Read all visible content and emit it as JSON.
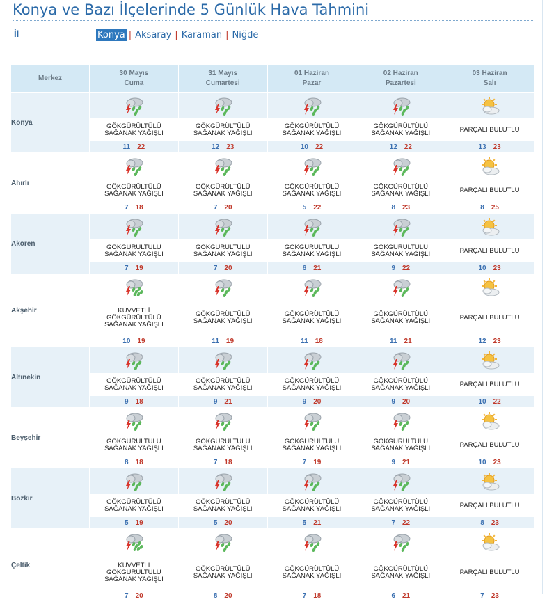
{
  "title": "Konya ve Bazı İlçelerinde 5 Günlük Hava Tahmini",
  "il_label": "İl",
  "provinces": [
    "Konya",
    "Aksaray",
    "Karaman",
    "Niğde"
  ],
  "active_province": "Konya",
  "header": {
    "merkez": "Merkez",
    "days": [
      {
        "date": "30 Mayıs",
        "weekday": "Cuma"
      },
      {
        "date": "31 Mayıs",
        "weekday": "Cumartesi"
      },
      {
        "date": "01 Haziran",
        "weekday": "Pazar"
      },
      {
        "date": "02 Haziran",
        "weekday": "Pazartesi"
      },
      {
        "date": "03 Haziran",
        "weekday": "Salı"
      }
    ]
  },
  "conditions": {
    "storm": {
      "icon": "thunderstorm-icon",
      "lines": [
        "GÖKGÜRÜLTÜLÜ",
        "SAĞANAK YAĞIŞLI"
      ]
    },
    "strong": {
      "icon": "heavy-thunderstorm-icon",
      "lines": [
        "KUVVETLİ",
        "GÖKGÜRÜLTÜLÜ",
        "SAĞANAK YAĞIŞLI"
      ]
    },
    "partly": {
      "icon": "partly-cloudy-icon",
      "lines": [
        "PARÇALI BULUTLU"
      ]
    }
  },
  "cities": [
    {
      "name": "Konya",
      "days": [
        {
          "c": "storm",
          "lo": "11",
          "hi": "22"
        },
        {
          "c": "storm",
          "lo": "12",
          "hi": "23"
        },
        {
          "c": "storm",
          "lo": "10",
          "hi": "22"
        },
        {
          "c": "storm",
          "lo": "12",
          "hi": "22"
        },
        {
          "c": "partly",
          "lo": "13",
          "hi": "23"
        }
      ]
    },
    {
      "name": "Ahırlı",
      "days": [
        {
          "c": "storm",
          "lo": "7",
          "hi": "18"
        },
        {
          "c": "storm",
          "lo": "7",
          "hi": "20"
        },
        {
          "c": "storm",
          "lo": "5",
          "hi": "22"
        },
        {
          "c": "storm",
          "lo": "8",
          "hi": "23"
        },
        {
          "c": "partly",
          "lo": "8",
          "hi": "25"
        }
      ]
    },
    {
      "name": "Akören",
      "days": [
        {
          "c": "storm",
          "lo": "7",
          "hi": "19"
        },
        {
          "c": "storm",
          "lo": "7",
          "hi": "20"
        },
        {
          "c": "storm",
          "lo": "6",
          "hi": "21"
        },
        {
          "c": "storm",
          "lo": "9",
          "hi": "22"
        },
        {
          "c": "partly",
          "lo": "10",
          "hi": "23"
        }
      ]
    },
    {
      "name": "Akşehir",
      "days": [
        {
          "c": "strong",
          "lo": "10",
          "hi": "19"
        },
        {
          "c": "storm",
          "lo": "11",
          "hi": "19"
        },
        {
          "c": "storm",
          "lo": "11",
          "hi": "18"
        },
        {
          "c": "storm",
          "lo": "11",
          "hi": "21"
        },
        {
          "c": "partly",
          "lo": "12",
          "hi": "23"
        }
      ]
    },
    {
      "name": "Altınekin",
      "days": [
        {
          "c": "storm",
          "lo": "9",
          "hi": "18"
        },
        {
          "c": "storm",
          "lo": "9",
          "hi": "21"
        },
        {
          "c": "storm",
          "lo": "9",
          "hi": "20"
        },
        {
          "c": "storm",
          "lo": "9",
          "hi": "20"
        },
        {
          "c": "partly",
          "lo": "10",
          "hi": "22"
        }
      ]
    },
    {
      "name": "Beyşehir",
      "days": [
        {
          "c": "storm",
          "lo": "8",
          "hi": "18"
        },
        {
          "c": "storm",
          "lo": "7",
          "hi": "18"
        },
        {
          "c": "storm",
          "lo": "7",
          "hi": "19"
        },
        {
          "c": "storm",
          "lo": "9",
          "hi": "21"
        },
        {
          "c": "partly",
          "lo": "10",
          "hi": "23"
        }
      ]
    },
    {
      "name": "Bozkır",
      "days": [
        {
          "c": "storm",
          "lo": "5",
          "hi": "19"
        },
        {
          "c": "storm",
          "lo": "5",
          "hi": "20"
        },
        {
          "c": "storm",
          "lo": "5",
          "hi": "21"
        },
        {
          "c": "storm",
          "lo": "7",
          "hi": "22"
        },
        {
          "c": "partly",
          "lo": "8",
          "hi": "23"
        }
      ]
    },
    {
      "name": "Çeltik",
      "days": [
        {
          "c": "strong",
          "lo": "7",
          "hi": "20"
        },
        {
          "c": "storm",
          "lo": "8",
          "hi": "20"
        },
        {
          "c": "storm",
          "lo": "7",
          "hi": "18"
        },
        {
          "c": "storm",
          "lo": "6",
          "hi": "21"
        },
        {
          "c": "partly",
          "lo": "7",
          "hi": "23"
        }
      ]
    }
  ]
}
